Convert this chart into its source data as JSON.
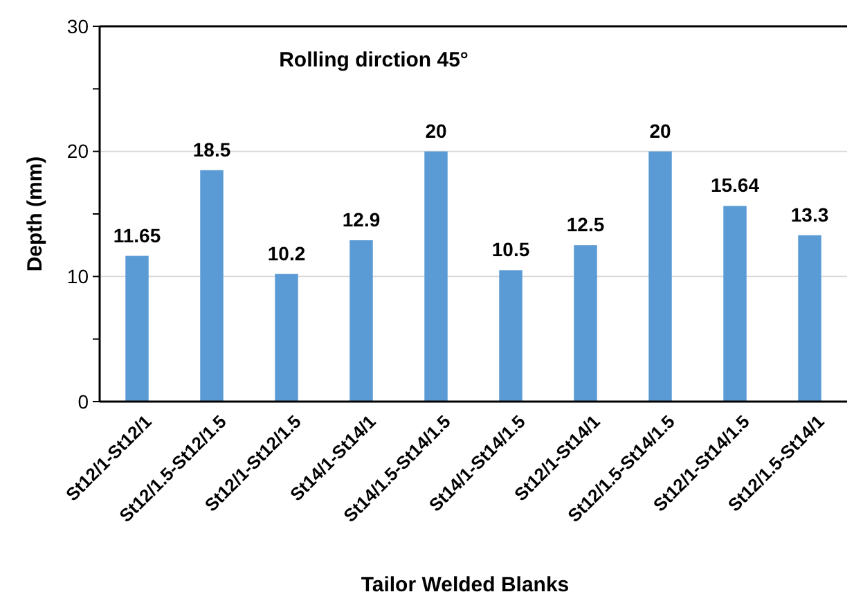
{
  "chart_data": {
    "type": "bar",
    "title": "Rolling dirction  45°",
    "xlabel": "Tailor Welded Blanks",
    "ylabel": "Depth (mm)",
    "categories": [
      "St12/1-St12/1",
      "St12/1.5-St12/1.5",
      "St12/1-St12/1.5",
      "St14/1-St14/1",
      "St14/1.5-St14/1.5",
      "St14/1-St14/1.5",
      "St12/1-St14/1",
      "St12/1.5-St14/1.5",
      "St12/1-St14/1.5",
      "St12/1.5-St14/1"
    ],
    "values": [
      11.65,
      18.5,
      10.2,
      12.9,
      20,
      10.5,
      12.5,
      20,
      15.64,
      13.3
    ],
    "color": "#5b9bd5",
    "data_labels": true,
    "grid": "y",
    "ylim": [
      0,
      30
    ],
    "yticks": [
      0,
      {
        "value": 5,
        "label": null
      },
      10,
      {
        "value": 15,
        "label": null
      },
      20,
      {
        "value": 25,
        "label": null
      },
      30
    ]
  }
}
